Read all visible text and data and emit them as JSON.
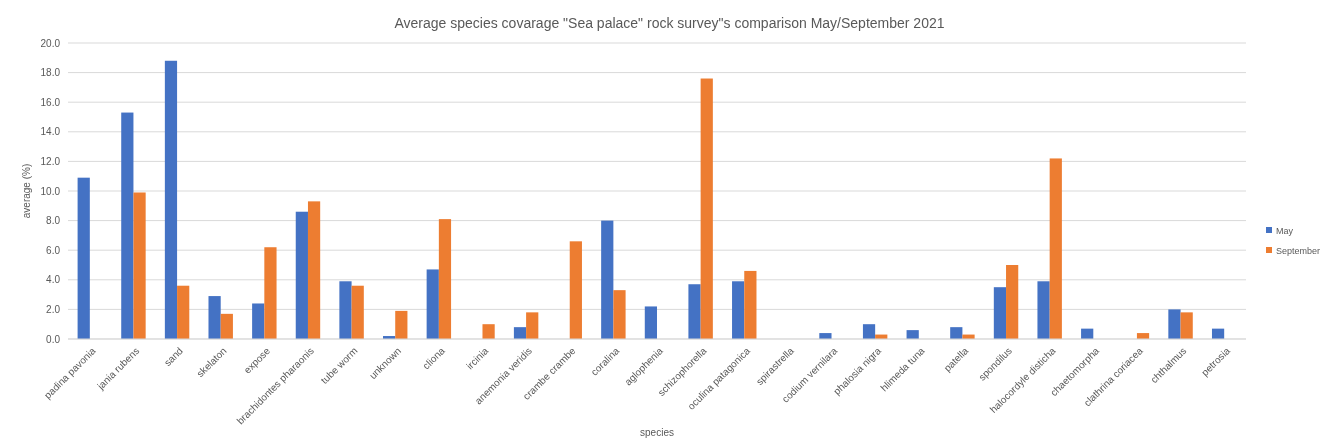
{
  "chart_data": {
    "type": "bar",
    "title": "Average species covarage \"Sea palace\" rock survey\"s comparison May/September 2021",
    "xlabel": "species",
    "ylabel": "average (%)",
    "categories": [
      "padina pavonia",
      "jania rubens",
      "sand",
      "skelaton",
      "expose",
      "brachidontes pharaonis",
      "tube worm",
      "unknown",
      "cliona",
      "ircinia",
      "anemonia veridis",
      "crambe crambe",
      "coralina",
      "aglophenia",
      "schizophorella",
      "oculina patagonica",
      "spirastrella",
      "codium vernilara",
      "phalosia nigra",
      "hlimeda tuna",
      "patella",
      "spondilus",
      "halocordyle disticha",
      "chaetomorpha",
      "clathrina coriacea",
      "chthalmus",
      "petrosia"
    ],
    "series": [
      {
        "name": "May",
        "color": "#4472c4",
        "values": [
          10.9,
          15.3,
          18.8,
          2.9,
          2.4,
          8.6,
          3.9,
          0.2,
          4.7,
          0,
          0.8,
          0,
          8.0,
          2.2,
          3.7,
          3.9,
          0,
          0.4,
          1.0,
          0.6,
          0.8,
          3.5,
          3.9,
          0.7,
          0,
          2.0,
          0.7
        ]
      },
      {
        "name": "September",
        "color": "#ed7d31",
        "values": [
          0,
          9.9,
          3.6,
          1.7,
          6.2,
          9.3,
          3.6,
          1.9,
          8.1,
          1.0,
          1.8,
          6.6,
          3.3,
          0,
          17.6,
          4.6,
          0,
          0,
          0.3,
          0,
          0.3,
          5.0,
          12.2,
          0,
          0.4,
          1.8,
          0
        ]
      }
    ],
    "ylim": [
      0,
      20
    ],
    "yticks": [
      {
        "value": 0,
        "label": "0.0"
      },
      {
        "value": 2,
        "label": "2.0"
      },
      {
        "value": 4,
        "label": "4.0"
      },
      {
        "value": 6,
        "label": "6.0"
      },
      {
        "value": 8,
        "label": "8.0"
      },
      {
        "value": 10,
        "label": "10.0"
      },
      {
        "value": 12,
        "label": "12.0"
      },
      {
        "value": 14,
        "label": "14.0"
      },
      {
        "value": 16,
        "label": "16.0"
      },
      {
        "value": 18,
        "label": "18.0"
      },
      {
        "value": 20,
        "label": "20.0"
      }
    ],
    "grid": "y",
    "legend": "right"
  }
}
